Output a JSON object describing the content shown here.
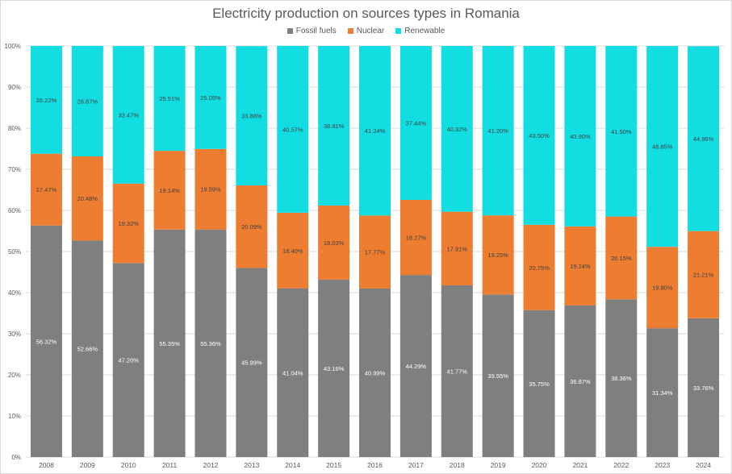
{
  "chart_data": {
    "type": "bar",
    "stacked": true,
    "percent_stacked": true,
    "title": "Electricity production on sources types in Romania",
    "legend_position": "top",
    "grid": true,
    "ylim": [
      0,
      100
    ],
    "y_ticks": [
      "0%",
      "10%",
      "20%",
      "30%",
      "40%",
      "50%",
      "60%",
      "70%",
      "80%",
      "90%",
      "100%"
    ],
    "categories": [
      "2008",
      "2009",
      "2010",
      "2011",
      "2012",
      "2013",
      "2014",
      "2015",
      "2016",
      "2017",
      "2018",
      "2019",
      "2020",
      "2021",
      "2022",
      "2023",
      "2024"
    ],
    "series": [
      {
        "name": "Fossil fuels",
        "color": "#7f7f7f",
        "label_color": "#ffffff",
        "values": [
          56.32,
          52.66,
          47.2,
          55.35,
          55.36,
          45.99,
          41.04,
          43.16,
          40.99,
          44.29,
          41.77,
          39.55,
          35.75,
          36.87,
          38.36,
          31.34,
          33.76
        ],
        "labels": [
          "56.32%",
          "52.66%",
          "47.20%",
          "55.35%",
          "55.36%",
          "45.99%",
          "41.04%",
          "43.16%",
          "40.99%",
          "44.29%",
          "41.77%",
          "39.55%",
          "35.75%",
          "36.87%",
          "38.36%",
          "31.34%",
          "33.76%"
        ]
      },
      {
        "name": "Nuclear",
        "color": "#ed7d31",
        "label_color": "#404040",
        "values": [
          17.47,
          20.48,
          19.32,
          19.14,
          19.59,
          20.09,
          18.4,
          18.03,
          17.77,
          18.27,
          17.91,
          19.25,
          20.75,
          19.24,
          20.15,
          19.8,
          21.21
        ],
        "labels": [
          "17.47%",
          "20.48%",
          "19.32%",
          "19.14%",
          "19.59%",
          "20.09%",
          "18.40%",
          "18.03%",
          "17.77%",
          "18.27%",
          "17.91%",
          "19.25%",
          "20.75%",
          "19.24%",
          "20.15%",
          "19.80%",
          "21.21%"
        ]
      },
      {
        "name": "Renewable",
        "color": "#12dde1",
        "label_color": "#404040",
        "values": [
          26.22,
          26.87,
          33.47,
          25.51,
          25.05,
          33.88,
          40.57,
          38.81,
          41.24,
          37.44,
          40.32,
          41.2,
          43.5,
          43.9,
          41.5,
          48.85,
          44.96
        ],
        "labels": [
          "26.22%",
          "26.87%",
          "33.47%",
          "25.51%",
          "25.05%",
          "33.88%",
          "40.57%",
          "38.81%",
          "41.24%",
          "37.44%",
          "40.32%",
          "41.20%",
          "43.50%",
          "43.90%",
          "41.50%",
          "48.85%",
          "44.96%"
        ]
      }
    ]
  }
}
